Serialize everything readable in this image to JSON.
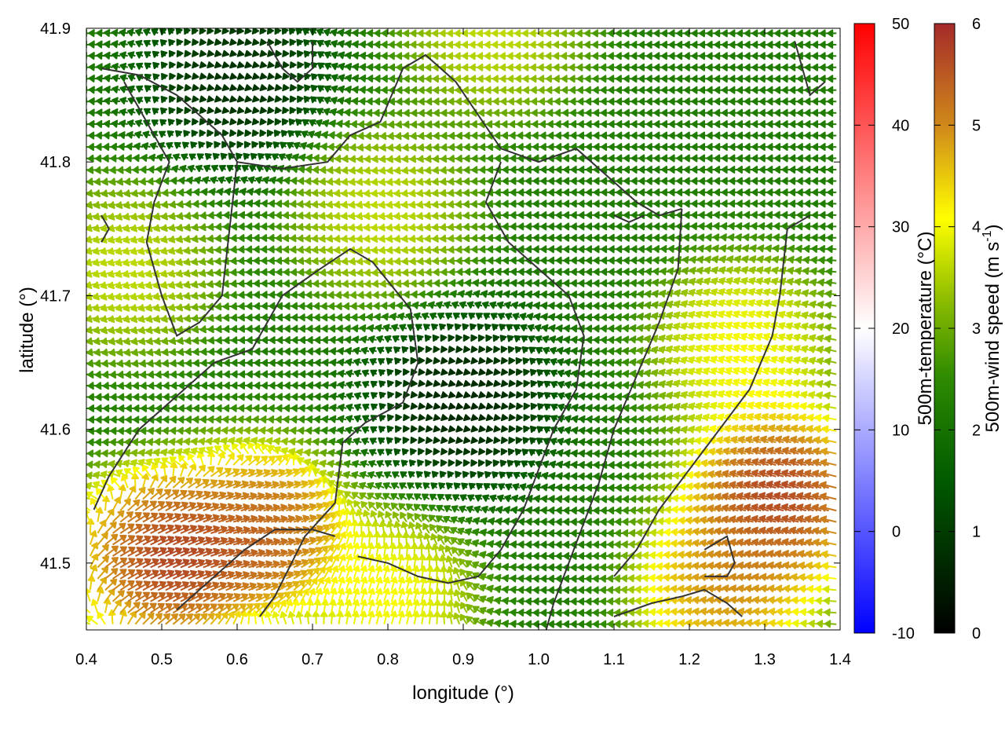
{
  "chart_data": {
    "type": "heatmap",
    "subtype": "wind-vector field over surface map",
    "xlabel": "longitude (°)",
    "ylabel": "latitude (°)",
    "xlim": [
      0.4,
      1.4
    ],
    "ylim": [
      41.45,
      41.9
    ],
    "x_ticks": [
      "0.4",
      "0.5",
      "0.6",
      "0.7",
      "0.8",
      "0.9",
      "1.0",
      "1.1",
      "1.2",
      "1.3",
      "1.4"
    ],
    "y_ticks": [
      "41.5",
      "41.6",
      "41.7",
      "41.8",
      "41.9"
    ],
    "grid": false,
    "colorbars": [
      {
        "label": "500m-temperature (°C)",
        "range": [
          -10,
          50
        ],
        "ticks": [
          "50",
          "40",
          "30",
          "20",
          "10",
          "0",
          "-10"
        ],
        "colors": [
          "#0000ff",
          "#ffffff",
          "#ff0000"
        ]
      },
      {
        "label": "500m-wind speed (m s-1)",
        "label_prefix": "500m-wind speed (m s",
        "label_superscript": "-1",
        "label_suffix": ")",
        "range": [
          0,
          6
        ],
        "ticks": [
          "6",
          "5",
          "4",
          "3",
          "2",
          "1",
          "0"
        ],
        "colors": [
          "#000000",
          "#005a00",
          "#2e8b00",
          "#8fbe00",
          "#ffff00",
          "#d08a1a",
          "#a52a2a"
        ]
      }
    ],
    "wind_field": {
      "grid_step_deg": [
        0.01,
        0.0085
      ],
      "speed_centers": [
        {
          "lon": 0.5,
          "lat": 41.5,
          "speed": 6.5,
          "dir_deg": 20
        },
        {
          "lon": 0.63,
          "lat": 41.52,
          "speed": 6.0,
          "dir_deg": 10
        },
        {
          "lon": 1.33,
          "lat": 41.55,
          "speed": 6.5,
          "dir_deg": 160
        },
        {
          "lon": 1.26,
          "lat": 41.48,
          "speed": 5.5,
          "dir_deg": 170
        },
        {
          "lon": 0.8,
          "lat": 41.47,
          "speed": 4.5,
          "dir_deg": 60
        },
        {
          "lon": 0.46,
          "lat": 41.72,
          "speed": 4.0,
          "dir_deg": 200
        },
        {
          "lon": 0.8,
          "lat": 41.76,
          "speed": 4.0,
          "dir_deg": 190
        },
        {
          "lon": 1.28,
          "lat": 41.66,
          "speed": 4.5,
          "dir_deg": 150
        },
        {
          "lon": 0.95,
          "lat": 41.9,
          "speed": 4.0,
          "dir_deg": 180
        },
        {
          "lon": 0.9,
          "lat": 41.62,
          "speed": 0.3,
          "dir_deg": 90
        },
        {
          "lon": 0.6,
          "lat": 41.86,
          "speed": 0.5,
          "dir_deg": 90
        }
      ],
      "background_speed": 2.2,
      "background_dir_deg": 180
    },
    "contour_lines": [
      {
        "points": [
          [
            0.41,
            41.54
          ],
          [
            0.43,
            41.565
          ],
          [
            0.47,
            41.6
          ],
          [
            0.52,
            41.625
          ],
          [
            0.57,
            41.65
          ],
          [
            0.62,
            41.66
          ],
          [
            0.66,
            41.7
          ],
          [
            0.71,
            41.72
          ],
          [
            0.75,
            41.735
          ],
          [
            0.78,
            41.725
          ],
          [
            0.83,
            41.69
          ],
          [
            0.84,
            41.65
          ],
          [
            0.82,
            41.62
          ],
          [
            0.77,
            41.605
          ],
          [
            0.74,
            41.59
          ],
          [
            0.73,
            41.545
          ],
          [
            0.69,
            41.52
          ],
          [
            0.65,
            41.475
          ],
          [
            0.63,
            41.46
          ]
        ]
      },
      {
        "points": [
          [
            0.52,
            41.465
          ],
          [
            0.55,
            41.48
          ],
          [
            0.58,
            41.495
          ],
          [
            0.61,
            41.51
          ],
          [
            0.65,
            41.525
          ],
          [
            0.7,
            41.525
          ],
          [
            0.73,
            41.52
          ]
        ]
      },
      {
        "points": [
          [
            0.42,
            41.87
          ],
          [
            0.47,
            41.865
          ],
          [
            0.52,
            41.85
          ],
          [
            0.55,
            41.835
          ],
          [
            0.58,
            41.82
          ],
          [
            0.6,
            41.8
          ],
          [
            0.66,
            41.795
          ],
          [
            0.72,
            41.8
          ],
          [
            0.75,
            41.82
          ],
          [
            0.79,
            41.83
          ],
          [
            0.82,
            41.87
          ],
          [
            0.85,
            41.88
          ],
          [
            0.89,
            41.86
          ],
          [
            0.95,
            41.81
          ],
          [
            1.0,
            41.8
          ],
          [
            1.05,
            41.81
          ],
          [
            1.09,
            41.79
          ],
          [
            1.13,
            41.77
          ],
          [
            1.16,
            41.76
          ],
          [
            1.19,
            41.765
          ]
        ]
      },
      {
        "points": [
          [
            0.45,
            41.86
          ],
          [
            0.48,
            41.83
          ],
          [
            0.51,
            41.8
          ],
          [
            0.49,
            41.77
          ],
          [
            0.48,
            41.74
          ],
          [
            0.5,
            41.7
          ],
          [
            0.52,
            41.67
          ],
          [
            0.55,
            41.68
          ],
          [
            0.58,
            41.7
          ],
          [
            0.59,
            41.75
          ],
          [
            0.6,
            41.8
          ]
        ]
      },
      {
        "points": [
          [
            1.19,
            41.765
          ],
          [
            1.185,
            41.72
          ],
          [
            1.16,
            41.68
          ],
          [
            1.13,
            41.64
          ],
          [
            1.1,
            41.6
          ],
          [
            1.08,
            41.56
          ],
          [
            1.06,
            41.53
          ],
          [
            1.04,
            41.5
          ],
          [
            1.02,
            41.47
          ],
          [
            1.01,
            41.45
          ]
        ]
      },
      {
        "points": [
          [
            0.95,
            41.8
          ],
          [
            0.93,
            41.77
          ],
          [
            0.96,
            41.74
          ],
          [
            1.0,
            41.72
          ],
          [
            1.04,
            41.7
          ],
          [
            1.06,
            41.67
          ],
          [
            1.05,
            41.63
          ],
          [
            1.02,
            41.6
          ],
          [
            1.0,
            41.57
          ],
          [
            0.98,
            41.54
          ],
          [
            0.95,
            41.51
          ],
          [
            0.92,
            41.49
          ],
          [
            0.88,
            41.485
          ],
          [
            0.84,
            41.49
          ],
          [
            0.8,
            41.5
          ],
          [
            0.76,
            41.505
          ]
        ]
      },
      {
        "points": [
          [
            1.1,
            41.46
          ],
          [
            1.15,
            41.47
          ],
          [
            1.19,
            41.475
          ],
          [
            1.22,
            41.48
          ],
          [
            1.25,
            41.47
          ],
          [
            1.27,
            41.46
          ]
        ]
      },
      {
        "points": [
          [
            1.36,
            41.76
          ],
          [
            1.33,
            41.75
          ],
          [
            1.32,
            41.7
          ],
          [
            1.31,
            41.67
          ],
          [
            1.28,
            41.63
          ],
          [
            1.24,
            41.6
          ],
          [
            1.2,
            41.57
          ],
          [
            1.16,
            41.54
          ],
          [
            1.13,
            41.51
          ],
          [
            1.1,
            41.49
          ]
        ]
      },
      {
        "points": [
          [
            1.38,
            41.86
          ],
          [
            1.36,
            41.85
          ],
          [
            1.35,
            41.87
          ],
          [
            1.34,
            41.89
          ]
        ]
      },
      {
        "points": [
          [
            1.22,
            41.51
          ],
          [
            1.25,
            41.52
          ],
          [
            1.26,
            41.5
          ],
          [
            1.25,
            41.49
          ],
          [
            1.22,
            41.49
          ]
        ]
      },
      {
        "points": [
          [
            0.64,
            41.89
          ],
          [
            0.66,
            41.87
          ],
          [
            0.68,
            41.86
          ],
          [
            0.7,
            41.87
          ],
          [
            0.7,
            41.89
          ]
        ]
      },
      {
        "points": [
          [
            0.42,
            41.76
          ],
          [
            0.43,
            41.75
          ],
          [
            0.42,
            41.74
          ]
        ]
      },
      {
        "points": [
          [
            1.1,
            41.76
          ],
          [
            1.12,
            41.755
          ],
          [
            1.14,
            41.76
          ]
        ]
      }
    ]
  }
}
